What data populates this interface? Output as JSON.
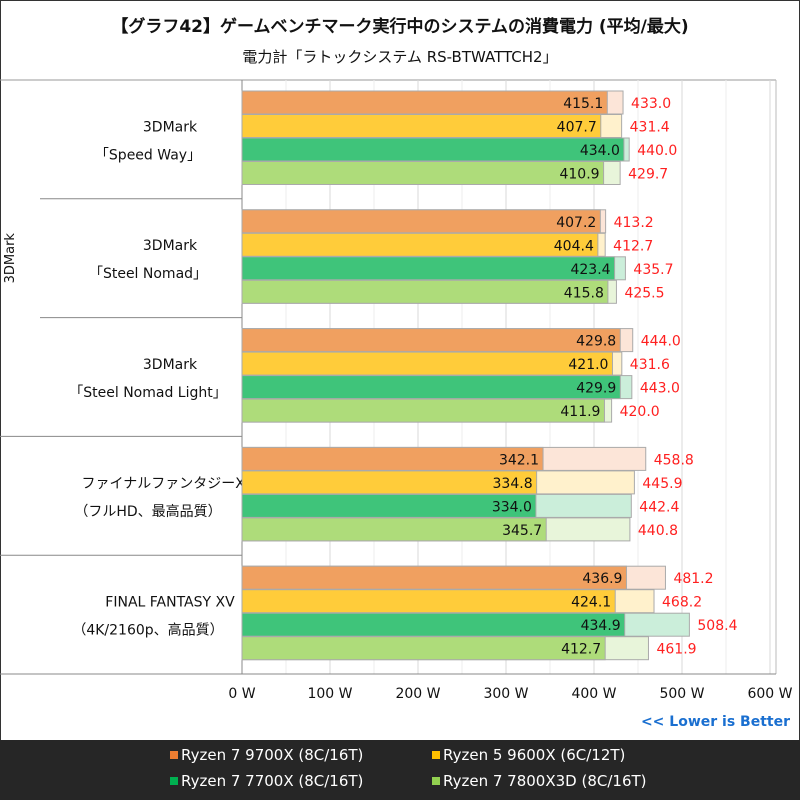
{
  "chart_data": {
    "type": "bar",
    "title": "【グラフ42】ゲームベンチマーク実行中のシステムの消費電力 (平均/最大)",
    "subtitle": "電力計「ラトックシステム RS-BTWATTCH2」",
    "outer_group": "3DMark",
    "categories": [
      {
        "l1": "3DMark",
        "l2": "「Speed Way」"
      },
      {
        "l1": "3DMark",
        "l2": "「Steel Nomad」"
      },
      {
        "l1": "3DMark",
        "l2": "「Steel Nomad Light」"
      },
      {
        "l1": "ファイナルファンタジーXIV",
        "l2": "（フルHD、最高品質）"
      },
      {
        "l1": "FINAL FANTASY XV",
        "l2": "（4K/2160p、高品質）"
      }
    ],
    "series": [
      {
        "name": "Ryzen 7 9700X (8C/16T)",
        "color": "#F0A060",
        "light": "#FCE5D8",
        "legend_color": "#ED7D31",
        "avg": [
          415.1,
          407.2,
          429.8,
          342.1,
          436.9
        ],
        "max": [
          433.0,
          413.2,
          444.0,
          458.8,
          481.2
        ]
      },
      {
        "name": "Ryzen 5 9600X (6C/12T)",
        "color": "#FFCC3A",
        "light": "#FFF1CC",
        "legend_color": "#FFC000",
        "avg": [
          407.7,
          404.4,
          421.0,
          334.8,
          424.1
        ],
        "max": [
          431.4,
          412.7,
          431.6,
          445.9,
          468.2
        ]
      },
      {
        "name": "Ryzen 7 7700X (8C/16T)",
        "color": "#3FC47A",
        "light": "#CBEEDA",
        "legend_color": "#00B050",
        "avg": [
          434.0,
          423.4,
          429.9,
          334.0,
          434.9
        ],
        "max": [
          440.0,
          435.7,
          443.0,
          442.4,
          508.4
        ]
      },
      {
        "name": "Ryzen 7 7800X3D (8C/16T)",
        "color": "#AEDC7A",
        "light": "#E8F5DA",
        "legend_color": "#92D050",
        "avg": [
          410.9,
          415.8,
          411.9,
          345.7,
          412.7
        ],
        "max": [
          429.7,
          425.5,
          420.0,
          440.8,
          461.9
        ]
      }
    ],
    "xlim": [
      0,
      600
    ],
    "xticks": [
      "0 W",
      "100 W",
      "200 W",
      "300 W",
      "400 W",
      "500 W",
      "600 W"
    ],
    "note": "<< Lower is Better"
  }
}
